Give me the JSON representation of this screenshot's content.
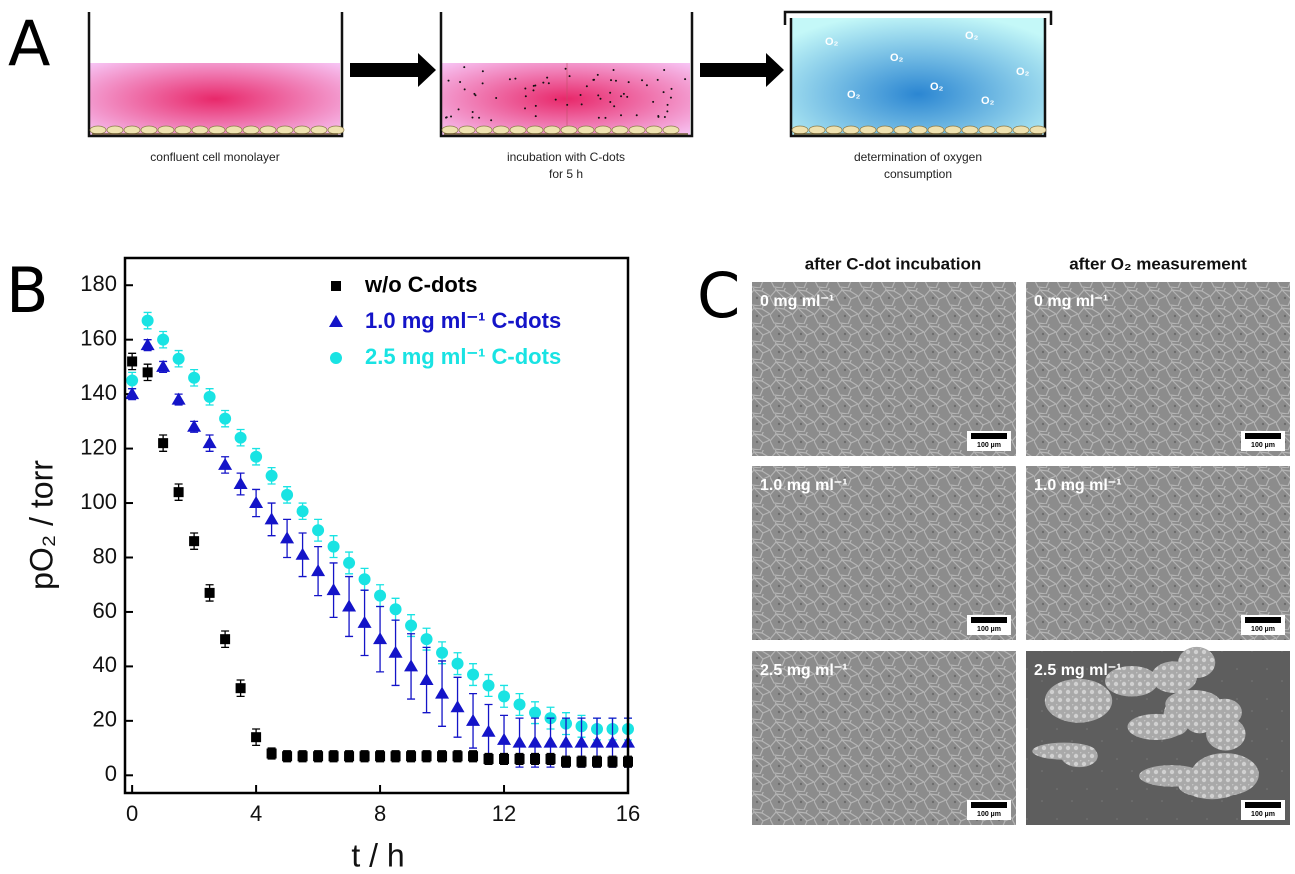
{
  "panels": {
    "A": {
      "letter": "A",
      "captions": [
        [
          "confluent cell monolayer"
        ],
        [
          "incubation with C-dots",
          "for 5 h"
        ],
        [
          "determination of oxygen",
          "consumption"
        ]
      ],
      "o2_label": "O₂"
    },
    "B": {
      "letter": "B"
    },
    "C": {
      "letter": "C",
      "columns": [
        "after C-dot incubation",
        "after O₂ measurement"
      ],
      "rows": [
        "0 mg ml⁻¹",
        "1.0 mg ml⁻¹",
        "2.5 mg ml⁻¹"
      ],
      "scale_bar": "100 µm"
    }
  },
  "chart_data": {
    "type": "scatter",
    "x_label": "t / h",
    "y_label": "pO₂ / torr",
    "xlim": [
      -0.23,
      16
    ],
    "ylim": [
      -6.5,
      190
    ],
    "xticks": [
      0,
      4,
      8,
      12,
      16
    ],
    "yticks": [
      0,
      20,
      40,
      60,
      80,
      100,
      120,
      140,
      160,
      180
    ],
    "legend": "top-center",
    "x": [
      0,
      0.5,
      1,
      1.5,
      2,
      2.5,
      3,
      3.5,
      4,
      4.5,
      5,
      5.5,
      6,
      6.5,
      7,
      7.5,
      8,
      8.5,
      9,
      9.5,
      10,
      10.5,
      11,
      11.5,
      12,
      12.5,
      13,
      13.5,
      14,
      14.5,
      15,
      15.5,
      16
    ],
    "series": [
      {
        "name": "2.5 mg ml⁻¹ C-dots",
        "color": "#19e3e3",
        "marker": "circle",
        "values": [
          145,
          167,
          160,
          153,
          146,
          139,
          131,
          124,
          117,
          110,
          103,
          97,
          90,
          84,
          78,
          72,
          66,
          61,
          55,
          50,
          45,
          41,
          37,
          33,
          29,
          26,
          23,
          21,
          19,
          18,
          17,
          17,
          17
        ],
        "errors": [
          3,
          3,
          3,
          3,
          3,
          3,
          3,
          3,
          3,
          3,
          3,
          3,
          4,
          4,
          4,
          4,
          4,
          4,
          4,
          4,
          4,
          4,
          4,
          4,
          4,
          4,
          4,
          4,
          4,
          4,
          4,
          4,
          4
        ]
      },
      {
        "name": "1.0 mg ml⁻¹ C-dots",
        "color": "#1414c8",
        "marker": "triangle",
        "values": [
          140,
          158,
          150,
          138,
          128,
          122,
          114,
          107,
          100,
          94,
          87,
          81,
          75,
          68,
          62,
          56,
          50,
          45,
          40,
          35,
          30,
          25,
          20,
          16,
          13,
          12,
          12,
          12,
          12,
          12,
          12,
          12,
          12
        ],
        "errors": [
          2,
          2,
          2,
          2,
          2,
          3,
          3,
          4,
          5,
          6,
          7,
          8,
          9,
          10,
          11,
          12,
          12,
          12,
          12,
          12,
          12,
          11,
          10,
          10,
          9,
          9,
          9,
          9,
          9,
          9,
          9,
          9,
          9
        ]
      },
      {
        "name": "w/o C-dots",
        "color": "#000000",
        "marker": "square",
        "values": [
          152,
          148,
          122,
          104,
          86,
          67,
          50,
          32,
          14,
          8,
          7,
          7,
          7,
          7,
          7,
          7,
          7,
          7,
          7,
          7,
          7,
          7,
          7,
          6,
          6,
          6,
          6,
          6,
          5,
          5,
          5,
          5,
          5
        ],
        "errors": [
          3,
          3,
          3,
          3,
          3,
          3,
          3,
          3,
          3,
          2,
          2,
          2,
          2,
          2,
          2,
          2,
          2,
          2,
          2,
          2,
          2,
          2,
          2,
          2,
          2,
          2,
          2,
          2,
          2,
          2,
          2,
          2,
          2
        ]
      }
    ]
  }
}
